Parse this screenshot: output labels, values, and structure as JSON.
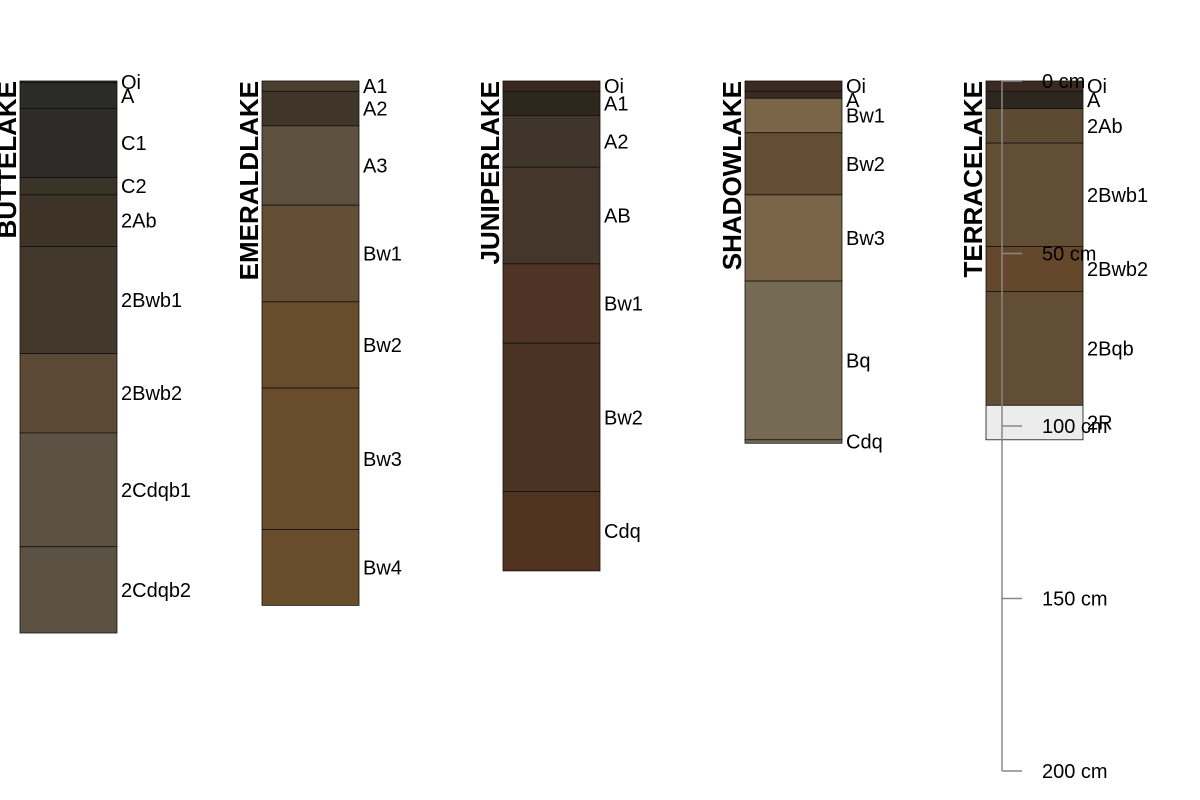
{
  "profiles": [
    {
      "name": "BUTTELAKE",
      "horizons": [
        {
          "name": "Oi",
          "top": 0,
          "bottom": 0.5,
          "color": "#2a2a28"
        },
        {
          "name": "A",
          "top": 0.5,
          "bottom": 8,
          "color": "#2b2b28"
        },
        {
          "name": "C1",
          "top": 8,
          "bottom": 28,
          "color": "#2d2c28"
        },
        {
          "name": "C2",
          "top": 28,
          "bottom": 33,
          "color": "#3a3328"
        },
        {
          "name": "2Ab",
          "top": 33,
          "bottom": 48,
          "color": "#3d3326"
        },
        {
          "name": "2Bwb1",
          "top": 48,
          "bottom": 79,
          "color": "#43382c"
        },
        {
          "name": "2Bwb2",
          "top": 79,
          "bottom": 102,
          "color": "#5c4a36"
        },
        {
          "name": "2Cdqb1",
          "top": 102,
          "bottom": 135,
          "color": "#5c5244"
        },
        {
          "name": "2Cdqb2",
          "top": 135,
          "bottom": 160,
          "color": "#5c5244"
        }
      ]
    },
    {
      "name": "EMERALDLAKE",
      "horizons": [
        {
          "name": "A1",
          "top": 0,
          "bottom": 3,
          "color": "#4a3e2e"
        },
        {
          "name": "A2",
          "top": 3,
          "bottom": 13,
          "color": "#3f3629"
        },
        {
          "name": "A3",
          "top": 13,
          "bottom": 36,
          "color": "#5e5140"
        },
        {
          "name": "Bw1",
          "top": 36,
          "bottom": 64,
          "color": "#644f35"
        },
        {
          "name": "Bw2",
          "top": 64,
          "bottom": 89,
          "color": "#684c2b"
        },
        {
          "name": "Bw3",
          "top": 89,
          "bottom": 130,
          "color": "#684c2b"
        },
        {
          "name": "Bw4",
          "top": 130,
          "bottom": 152,
          "color": "#684c2b"
        }
      ]
    },
    {
      "name": "JUNIPERLAKE",
      "horizons": [
        {
          "name": "Oi",
          "top": 0,
          "bottom": 3,
          "color": "#3a2820"
        },
        {
          "name": "A1",
          "top": 3,
          "bottom": 10,
          "color": "#2e271e"
        },
        {
          "name": "A2",
          "top": 10,
          "bottom": 25,
          "color": "#40352a"
        },
        {
          "name": "AB",
          "top": 25,
          "bottom": 53,
          "color": "#45362c"
        },
        {
          "name": "Bw1",
          "top": 53,
          "bottom": 76,
          "color": "#4d3425"
        },
        {
          "name": "Bw2",
          "top": 76,
          "bottom": 119,
          "color": "#4b3324"
        },
        {
          "name": "Cdq",
          "top": 119,
          "bottom": 142,
          "color": "#50331e"
        }
      ]
    },
    {
      "name": "SHADOWLAKE",
      "horizons": [
        {
          "name": "Oi",
          "top": 0,
          "bottom": 3,
          "color": "#3a2a22"
        },
        {
          "name": "A",
          "top": 3,
          "bottom": 5,
          "color": "#3a2a22"
        },
        {
          "name": "Bw1",
          "top": 5,
          "bottom": 15,
          "color": "#7a6548"
        },
        {
          "name": "Bw2",
          "top": 15,
          "bottom": 33,
          "color": "#634d35"
        },
        {
          "name": "Bw3",
          "top": 33,
          "bottom": 58,
          "color": "#7a6548"
        },
        {
          "name": "Bq",
          "top": 58,
          "bottom": 104,
          "color": "#756a54"
        },
        {
          "name": "Cdq",
          "top": 104,
          "bottom": 105,
          "color": "#756a54"
        }
      ]
    },
    {
      "name": "TERRACELAKE",
      "horizons": [
        {
          "name": "Oi",
          "top": 0,
          "bottom": 3,
          "color": "#3a2a22"
        },
        {
          "name": "A",
          "top": 3,
          "bottom": 8,
          "color": "#2e271f"
        },
        {
          "name": "2Ab",
          "top": 8,
          "bottom": 18,
          "color": "#5c4a33"
        },
        {
          "name": "2Bwb1",
          "top": 18,
          "bottom": 48,
          "color": "#624e35"
        },
        {
          "name": "2Bwb2",
          "top": 48,
          "bottom": 61,
          "color": "#65482b"
        },
        {
          "name": "2Bqb",
          "top": 61,
          "bottom": 94,
          "color": "#624e35"
        },
        {
          "name": "2R",
          "top": 94,
          "bottom": 104,
          "color": "#ececec"
        }
      ]
    }
  ],
  "depth_scale": {
    "ticks": [
      {
        "depth": 0,
        "label": "0 cm"
      },
      {
        "depth": 50,
        "label": "50 cm"
      },
      {
        "depth": 100,
        "label": "100 cm"
      },
      {
        "depth": 150,
        "label": "150 cm"
      },
      {
        "depth": 200,
        "label": "200 cm"
      }
    ]
  }
}
